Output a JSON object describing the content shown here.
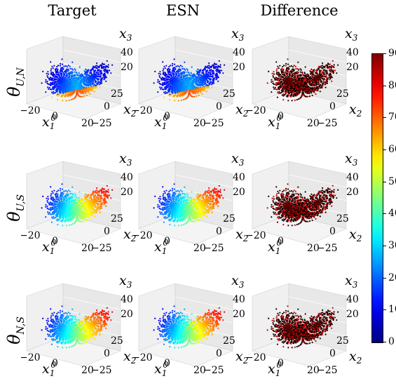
{
  "chart_data": {
    "type": "scatter",
    "layout": "3x3 grid of 3D scatter plots of a Lorenz attractor trajectory, colored by value",
    "columns": [
      "Target",
      "ESN",
      "Difference"
    ],
    "rows": [
      {
        "label": "θ",
        "subscript": "U,N"
      },
      {
        "label": "θ",
        "subscript": "U,S"
      },
      {
        "label": "θ",
        "subscript": "N,S"
      }
    ],
    "axes": {
      "x1": {
        "label": "x",
        "sub": "1",
        "sup": "0",
        "ticks": [
          "−20",
          "0",
          "20"
        ]
      },
      "x2": {
        "label": "x",
        "sub": "2",
        "ticks": [
          "−25",
          "0",
          "25"
        ]
      },
      "x3": {
        "label": "x",
        "sub": "3",
        "ticks": [
          "20",
          "40"
        ]
      }
    },
    "colorbar": {
      "range": [
        0,
        90
      ],
      "ticks": [
        "0",
        "10",
        "20",
        "30",
        "40",
        "50",
        "60",
        "70",
        "80",
        "90"
      ],
      "colormap": "jet",
      "difference_colormap": "hot"
    },
    "color_style": {
      "row1_scheme": "warm-interior",
      "row2_scheme": "blue-dominant",
      "row3_scheme": "blue-dominant",
      "difference_scheme": "black-red"
    }
  }
}
